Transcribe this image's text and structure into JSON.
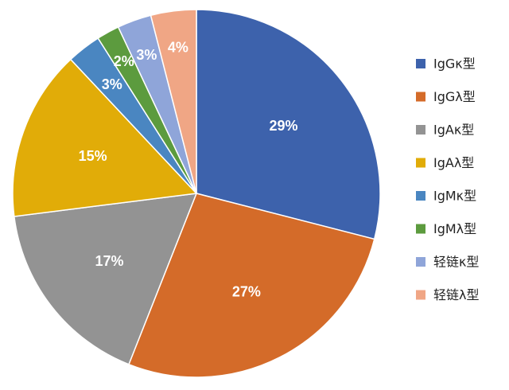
{
  "chart_data": {
    "type": "pie",
    "labels": [
      "IgGκ型",
      "IgGλ型",
      "IgAκ型",
      "IgAλ型",
      "IgMκ型",
      "IgMλ型",
      "轻链κ型",
      "轻链λ型"
    ],
    "values": [
      29,
      27,
      17,
      15,
      3,
      2,
      3,
      4
    ],
    "value_labels": [
      "29%",
      "27%",
      "17%",
      "15%",
      "3%",
      "2%",
      "3%",
      "4%"
    ],
    "colors": [
      "#3D62AC",
      "#D46B29",
      "#939393",
      "#E1AC08",
      "#4A86C1",
      "#5C9B3E",
      "#8FA5D9",
      "#F0A685"
    ],
    "start": "12 o'clock",
    "direction": "clockwise",
    "legend_position": "right",
    "title": ""
  }
}
